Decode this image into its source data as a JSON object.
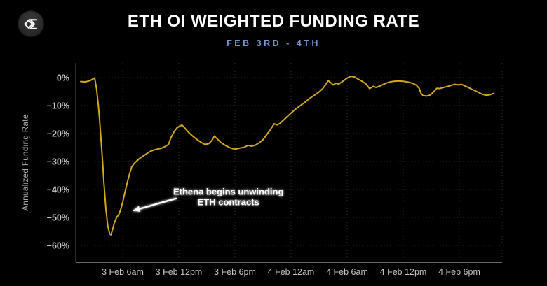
{
  "header": {
    "title": "ETH OI WEIGHTED FUNDING RATE",
    "subtitle": "FEB 3RD - 4TH",
    "subtitle_color": "#7595d2",
    "logo_icon": "sigma-diamond-logo"
  },
  "chart_data": {
    "type": "line",
    "title": "ETH OI WEIGHTED FUNDING RATE",
    "subtitle": "FEB 3RD - 4TH",
    "xlabel": "",
    "ylabel": "Annualized Funding Rate",
    "x_unit": "hours since 3 Feb 12am",
    "y_unit": "percent annualized",
    "xlim": [
      0.975,
      46.575
    ],
    "ylim": [
      -66,
      5.25
    ],
    "grid": true,
    "legend": "none",
    "background": "#000000",
    "yticks": [
      {
        "v": 0,
        "label": "0%"
      },
      {
        "v": -10,
        "label": "−10%"
      },
      {
        "v": -20,
        "label": "−20%"
      },
      {
        "v": -30,
        "label": "−30%"
      },
      {
        "v": -40,
        "label": "−40%"
      },
      {
        "v": -50,
        "label": "−50%"
      },
      {
        "v": -60,
        "label": "−60%"
      }
    ],
    "xticks": [
      {
        "v": 6,
        "label": "3 Feb 6am"
      },
      {
        "v": 12,
        "label": "3 Feb 12pm"
      },
      {
        "v": 18,
        "label": "3 Feb 6pm"
      },
      {
        "v": 24,
        "label": "4 Feb 12am"
      },
      {
        "v": 30,
        "label": "4 Feb 6am"
      },
      {
        "v": 36,
        "label": "4 Feb 12pm"
      },
      {
        "v": 42,
        "label": "4 Feb 6pm"
      }
    ],
    "series": [
      {
        "name": "ETH OI weighted funding rate",
        "color": "#d2a71a",
        "points": [
          [
            1.5,
            -1.4
          ],
          [
            2.0,
            -1.5
          ],
          [
            2.5,
            -1.1
          ],
          [
            2.8,
            -0.5
          ],
          [
            3.0,
            -0.1
          ],
          [
            3.2,
            -4.0
          ],
          [
            3.4,
            -10.0
          ],
          [
            3.55,
            -16.0
          ],
          [
            3.7,
            -23.0
          ],
          [
            3.85,
            -30.0
          ],
          [
            4.0,
            -38.0
          ],
          [
            4.2,
            -47.0
          ],
          [
            4.4,
            -53.0
          ],
          [
            4.6,
            -55.8
          ],
          [
            4.75,
            -56.2
          ],
          [
            4.9,
            -54.5
          ],
          [
            5.1,
            -52.0
          ],
          [
            5.35,
            -50.0
          ],
          [
            5.6,
            -48.8
          ],
          [
            5.8,
            -47.0
          ],
          [
            6.0,
            -44.5
          ],
          [
            6.2,
            -41.5
          ],
          [
            6.45,
            -38.0
          ],
          [
            6.7,
            -34.8
          ],
          [
            6.95,
            -32.0
          ],
          [
            7.2,
            -30.8
          ],
          [
            7.5,
            -29.8
          ],
          [
            7.8,
            -28.9
          ],
          [
            8.2,
            -28.0
          ],
          [
            8.6,
            -27.1
          ],
          [
            9.0,
            -26.3
          ],
          [
            9.4,
            -25.8
          ],
          [
            9.8,
            -25.5
          ],
          [
            10.2,
            -25.2
          ],
          [
            10.6,
            -24.5
          ],
          [
            10.9,
            -23.9
          ],
          [
            11.15,
            -21.5
          ],
          [
            11.5,
            -19.3
          ],
          [
            11.8,
            -18.0
          ],
          [
            12.1,
            -17.3
          ],
          [
            12.35,
            -17.0
          ],
          [
            12.6,
            -17.9
          ],
          [
            13.0,
            -19.4
          ],
          [
            13.4,
            -20.7
          ],
          [
            13.9,
            -22.0
          ],
          [
            14.4,
            -23.2
          ],
          [
            14.8,
            -23.9
          ],
          [
            15.2,
            -23.6
          ],
          [
            15.5,
            -22.6
          ],
          [
            15.8,
            -20.9
          ],
          [
            16.1,
            -21.9
          ],
          [
            16.5,
            -23.2
          ],
          [
            17.0,
            -24.3
          ],
          [
            17.5,
            -25.1
          ],
          [
            18.0,
            -25.6
          ],
          [
            18.5,
            -25.2
          ],
          [
            19.0,
            -24.9
          ],
          [
            19.4,
            -24.2
          ],
          [
            19.8,
            -24.5
          ],
          [
            20.2,
            -24.1
          ],
          [
            20.6,
            -23.3
          ],
          [
            21.0,
            -22.2
          ],
          [
            21.4,
            -20.4
          ],
          [
            21.8,
            -18.6
          ],
          [
            22.2,
            -16.5
          ],
          [
            22.5,
            -16.9
          ],
          [
            22.8,
            -16.4
          ],
          [
            23.2,
            -15.2
          ],
          [
            23.6,
            -13.9
          ],
          [
            24.0,
            -12.7
          ],
          [
            24.4,
            -11.5
          ],
          [
            25.0,
            -10.0
          ],
          [
            25.5,
            -8.8
          ],
          [
            26.0,
            -7.4
          ],
          [
            26.5,
            -6.3
          ],
          [
            27.0,
            -5.1
          ],
          [
            27.4,
            -3.9
          ],
          [
            27.7,
            -2.5
          ],
          [
            28.0,
            -1.1
          ],
          [
            28.5,
            -2.6
          ],
          [
            28.8,
            -2.0
          ],
          [
            29.1,
            -2.3
          ],
          [
            29.5,
            -1.4
          ],
          [
            30.0,
            -0.2
          ],
          [
            30.4,
            0.5
          ],
          [
            30.8,
            0.2
          ],
          [
            31.2,
            -0.6
          ],
          [
            31.6,
            -1.3
          ],
          [
            32.0,
            -2.2
          ],
          [
            32.4,
            -3.9
          ],
          [
            32.8,
            -3.1
          ],
          [
            33.1,
            -3.5
          ],
          [
            33.5,
            -3.0
          ],
          [
            34.0,
            -2.2
          ],
          [
            34.5,
            -1.6
          ],
          [
            35.0,
            -1.3
          ],
          [
            35.5,
            -1.2
          ],
          [
            36.0,
            -1.3
          ],
          [
            36.5,
            -1.6
          ],
          [
            37.0,
            -2.0
          ],
          [
            37.4,
            -2.7
          ],
          [
            37.7,
            -3.8
          ],
          [
            37.9,
            -5.6
          ],
          [
            38.1,
            -6.4
          ],
          [
            38.5,
            -6.6
          ],
          [
            38.9,
            -6.2
          ],
          [
            39.3,
            -4.9
          ],
          [
            39.6,
            -3.8
          ],
          [
            39.9,
            -3.9
          ],
          [
            40.3,
            -3.5
          ],
          [
            40.7,
            -3.2
          ],
          [
            41.1,
            -2.8
          ],
          [
            41.5,
            -2.4
          ],
          [
            41.9,
            -2.6
          ],
          [
            42.2,
            -2.4
          ],
          [
            42.5,
            -2.8
          ],
          [
            43.0,
            -3.6
          ],
          [
            43.5,
            -4.4
          ],
          [
            44.0,
            -5.2
          ],
          [
            44.5,
            -6.0
          ],
          [
            44.9,
            -6.3
          ],
          [
            45.3,
            -6.1
          ],
          [
            45.7,
            -5.6
          ]
        ]
      }
    ],
    "annotation": {
      "lines": [
        "Ethena begins unwinding",
        "ETH contracts"
      ],
      "text_h": 17.3,
      "line1_p": -41.9,
      "line2_p": -45.6,
      "arrow_from": [
        11.7,
        -43.2
      ],
      "arrow_to": [
        7.2,
        -47.5
      ]
    }
  }
}
